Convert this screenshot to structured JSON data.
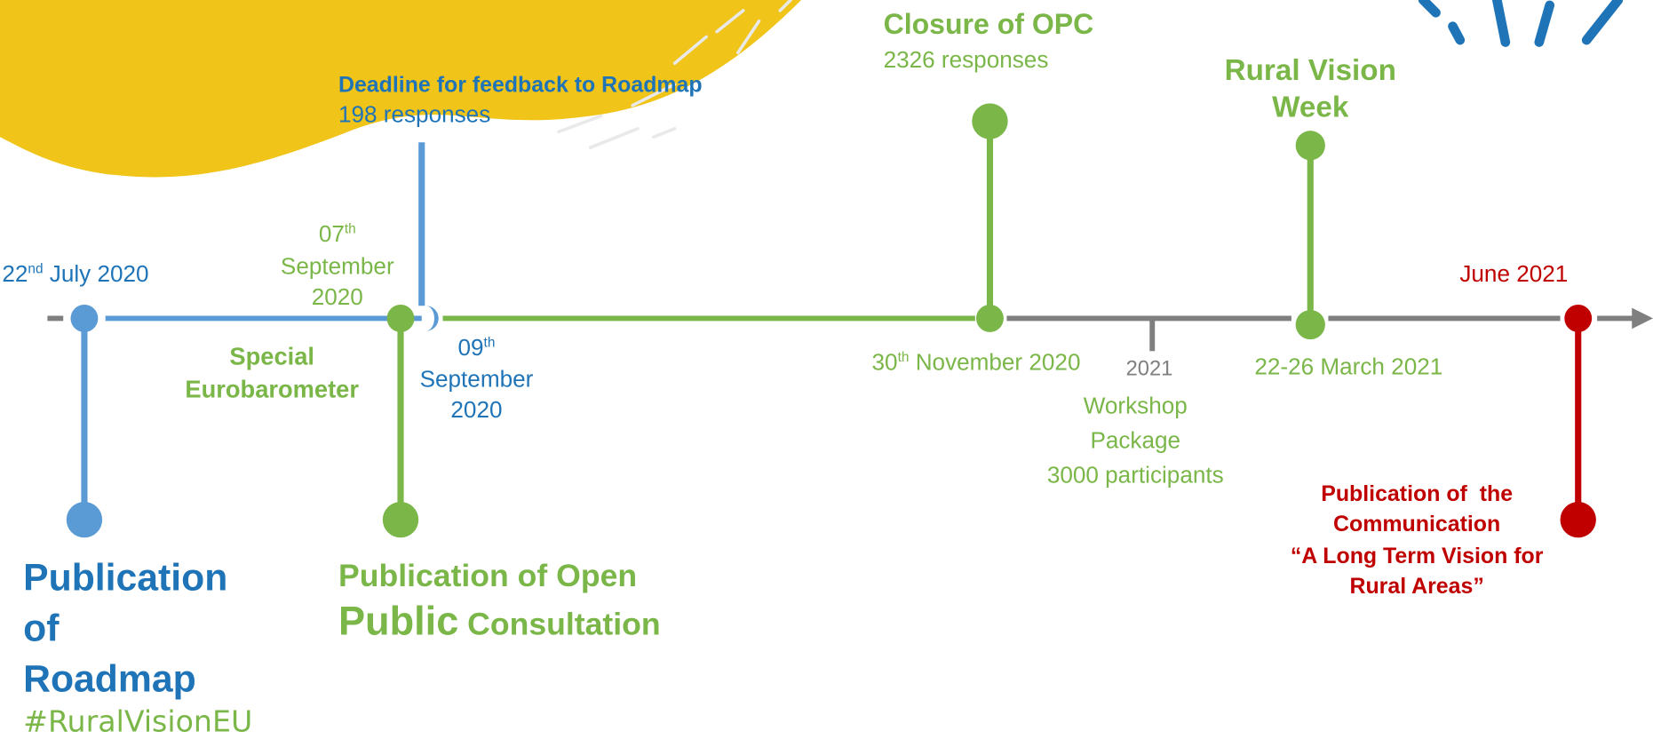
{
  "dates": {
    "roadmap": {
      "day": "22",
      "suffix": "nd",
      "rest": " July 2020"
    },
    "sep07": {
      "day": "07",
      "suffix": "th",
      "line2": "September",
      "line3": "2020"
    },
    "sep09": {
      "day": "09",
      "suffix": "th",
      "line2": "September",
      "line3": "2020"
    },
    "nov30": {
      "day": "30",
      "suffix": "th",
      "rest": " November 2020"
    },
    "year2021": "2021",
    "march": "22-26 March 2021",
    "june": "June 2021"
  },
  "labels": {
    "roadmap_title": [
      "Publication",
      "of",
      "Roadmap"
    ],
    "opc_title": {
      "line1": "Publication of Open",
      "line2a": "Public",
      "line2b": " Consultation"
    },
    "eurobarometer": [
      "Special",
      "Eurobarometer"
    ],
    "feedback": {
      "title": "Deadline for feedback to Roadmap",
      "count": "198 responses"
    },
    "closure": {
      "title": "Closure of OPC",
      "count": "2326 responses"
    },
    "rural_vision_week": [
      "Rural Vision",
      "Week"
    ],
    "workshop": [
      "Workshop",
      "Package",
      "3000 participants"
    ],
    "communication": [
      "Publication of  the",
      "Communication",
      "“A Long Term Vision for",
      "Rural Areas”"
    ]
  },
  "hashtag": "#RuralVisionEU"
}
